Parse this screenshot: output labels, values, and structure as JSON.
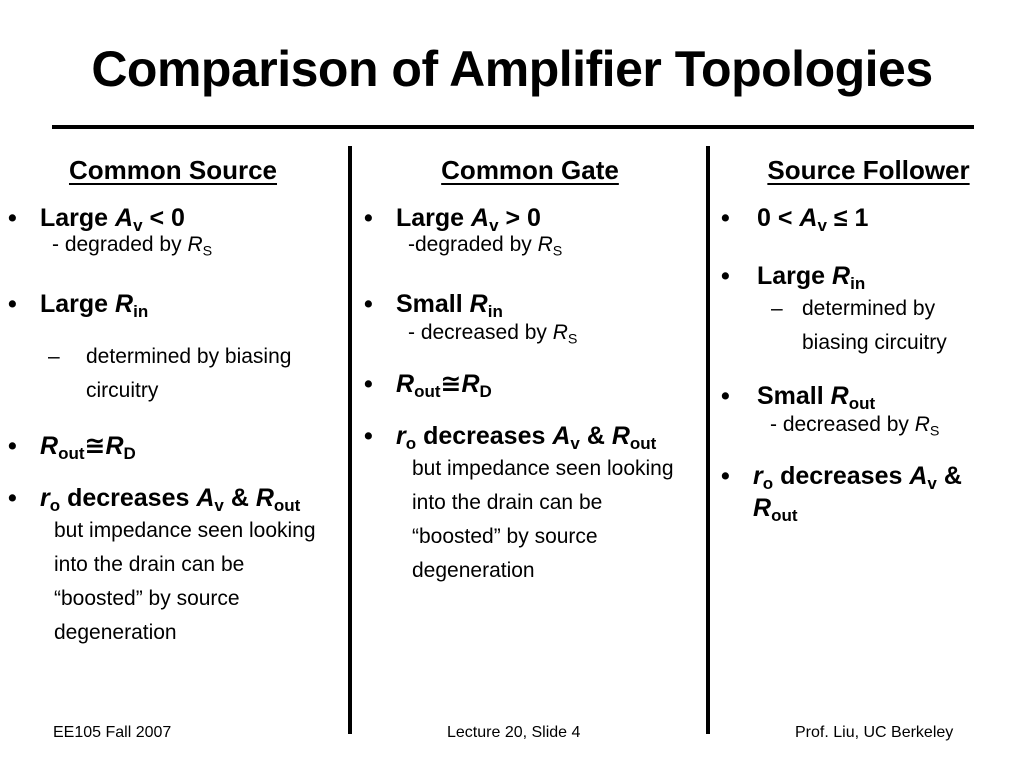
{
  "title": "Comparison of Amplifier Topologies",
  "columns": [
    {
      "heading": "Common Source",
      "b1": {
        "pre": "Large ",
        "A": "A",
        "sub": "v",
        "post": " < 0"
      },
      "b1_sub": {
        "pre": "- degraded by ",
        "R": "R",
        "sub": "S"
      },
      "b2": {
        "pre": "Large ",
        "R": "R",
        "sub": "in"
      },
      "b2_dash": "–",
      "b2_sub": "determined by biasing circuitry",
      "b3": {
        "R1": "R",
        "sub1": "out",
        "approx": "≅",
        "R2": "R",
        "sub2": "D"
      },
      "b4": {
        "r": "r",
        "rsub": "o",
        "mid": " decreases ",
        "A": "A",
        "asub": "v",
        "amp": " & ",
        "R": "R",
        "rsub2": "out"
      },
      "b4_note": "but impedance seen looking into the drain can be “boosted” by source degeneration"
    },
    {
      "heading": "Common Gate",
      "b1": {
        "pre": "Large ",
        "A": "A",
        "sub": "v",
        "post": " > 0"
      },
      "b1_sub": {
        "pre": "-degraded by ",
        "R": "R",
        "sub": "S"
      },
      "b2": {
        "pre": "Small ",
        "R": "R",
        "sub": "in"
      },
      "b2_sub": {
        "pre": "- decreased by ",
        "R": "R",
        "sub": "S"
      },
      "b3": {
        "R1": "R",
        "sub1": "out",
        "approx": "≅",
        "R2": "R",
        "sub2": "D"
      },
      "b4": {
        "r": "r",
        "rsub": "o",
        "mid": " decreases ",
        "A": "A",
        "asub": "v",
        "amp": " & ",
        "R": "R",
        "rsub2": "out"
      },
      "b4_note": "but impedance seen looking into the drain can be “boosted” by source degeneration"
    },
    {
      "heading": "Source Follower",
      "b1": {
        "pre": "0 < ",
        "A": "A",
        "sub": "v",
        "post": " ≤ 1"
      },
      "b2": {
        "pre": "Large ",
        "R": "R",
        "sub": "in"
      },
      "b2_dash": "–",
      "b2_sub": "determined by biasing circuitry",
      "b3": {
        "pre": "Small ",
        "R": "R",
        "sub": "out"
      },
      "b3_sub": {
        "pre": "- decreased by ",
        "R": "R",
        "sub": "S"
      },
      "b4": {
        "r": "r",
        "rsub": "o",
        "mid": " decreases ",
        "A": "A",
        "asub": "v",
        "amp": " &",
        "R": "R",
        "rsub2": "out"
      }
    }
  ],
  "bullet": "•",
  "footer": {
    "left": "EE105 Fall 2007",
    "center": "Lecture 20, Slide 4",
    "right": "Prof. Liu, UC Berkeley"
  }
}
